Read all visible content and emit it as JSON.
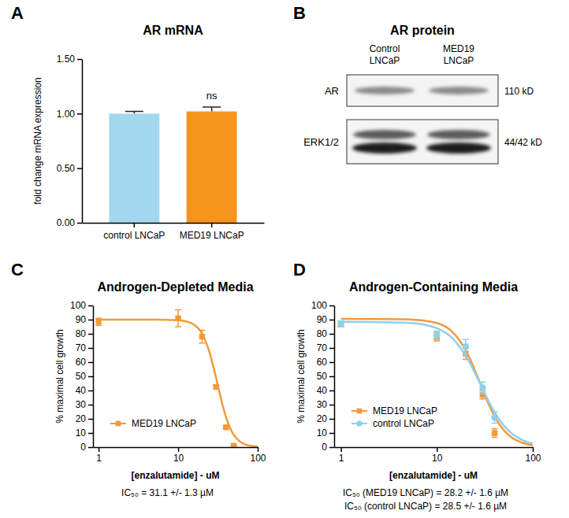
{
  "chart_data": [
    {
      "panel": "A",
      "type": "bar",
      "title": "AR mRNA",
      "y_label": "fold change mRNA expression",
      "categories": [
        "control LNCaP",
        "MED19 LNCaP"
      ],
      "values": [
        1.0,
        1.02
      ],
      "errors": [
        0.02,
        0.04
      ],
      "colors": [
        "#a3d7f0",
        "#f7941d"
      ],
      "ylim": [
        0,
        1.5
      ],
      "yticks": [
        {
          "value": 0,
          "label": "0.00"
        },
        {
          "value": 0.5,
          "label": "0.50"
        },
        {
          "value": 1,
          "label": "1.00"
        },
        {
          "value": 1.5,
          "label": "1.50"
        }
      ],
      "annotations": [
        {
          "text": "ns",
          "x": "MED19 LNCaP"
        }
      ]
    },
    {
      "panel": "C",
      "type": "line",
      "title": "Androgen-Depleted Media",
      "x_label": "[enzalutamide] - uM",
      "y_label": "% maximal cell growth",
      "log": "x",
      "xlim": [
        0.85,
        100
      ],
      "xticks": [
        1,
        10,
        100
      ],
      "ylim": [
        0,
        100
      ],
      "yticks": [
        0,
        10,
        20,
        30,
        40,
        50,
        60,
        70,
        80,
        90,
        100
      ],
      "legend": "lower left",
      "series": [
        {
          "name": "MED19 LNCaP",
          "color": "#f39a3b",
          "marker": "square",
          "line_style": "solid",
          "x": [
            1,
            10,
            20,
            30,
            40,
            50
          ],
          "values": [
            88.5,
            91,
            78,
            42.5,
            14,
            1
          ],
          "errors": [
            2.5,
            6,
            4.5,
            1.5,
            1,
            0.5
          ],
          "fit": {
            "x": [
              1,
              5,
              10,
              15,
              20,
              25,
              30,
              35,
              40,
              45,
              50,
              60,
              70,
              80,
              100
            ],
            "values": [
              90,
              90,
              89.6,
              87.2,
              80,
              66.2,
              48.8,
              32.8,
              21.1,
              13.5,
              8.7,
              3.9,
              1.9,
              1,
              0.4
            ]
          }
        }
      ],
      "annotations": [
        "IC₅₀ = 31.1 +/- 1.3 µM"
      ]
    },
    {
      "panel": "D",
      "type": "line",
      "title": "Androgen-Containing Media",
      "x_label": "[enzalutamide] - uM",
      "y_label": "% maximal cell growth",
      "log": "x",
      "xlim": [
        0.85,
        100
      ],
      "xticks": [
        1,
        10,
        100
      ],
      "ylim": [
        0,
        100
      ],
      "yticks": [
        0,
        10,
        20,
        30,
        40,
        50,
        60,
        70,
        80,
        90,
        100
      ],
      "legend": "lower left",
      "series": [
        {
          "name": "MED19 LNCaP",
          "color": "#f39a3b",
          "marker": "square",
          "line_style": "solid",
          "x": [
            1,
            10,
            20,
            30,
            40
          ],
          "values": [
            87,
            78,
            66,
            37,
            10
          ],
          "errors": [
            2,
            3,
            4,
            3,
            3
          ],
          "fit": {
            "x": [
              1,
              5,
              10,
              15,
              20,
              25,
              30,
              35,
              40,
              50,
              60,
              80,
              100
            ],
            "values": [
              90.5,
              90.2,
              87.6,
              80.4,
              68.5,
              54.1,
              40.7,
              29.8,
              21.7,
              11.9,
              6.9,
              2.8,
              1.4
            ]
          }
        },
        {
          "name": "control LNCaP",
          "color": "#8fd0ec",
          "marker": "circle",
          "line_style": "solid",
          "x": [
            1,
            10,
            20,
            30,
            40
          ],
          "values": [
            87,
            79,
            71,
            42,
            21
          ],
          "errors": [
            2,
            3,
            5,
            4,
            4
          ],
          "fit": {
            "x": [
              1,
              5,
              10,
              15,
              20,
              25,
              30,
              35,
              40,
              50,
              60,
              80,
              100
            ],
            "values": [
              88.5,
              87.8,
              84.0,
              75.9,
              64.6,
              52.3,
              41.1,
              31.8,
              24.7,
              15.2,
              9.8,
              4.7,
              2.6
            ]
          }
        }
      ],
      "annotations": [
        "IC₅₀ (MED19 LNCaP) = 28.2 +/- 1.6 µM",
        "IC₅₀ (control LNCaP) = 28.5 +/- 1.6 µM"
      ]
    }
  ],
  "blot": {
    "panel": "B",
    "title": "AR protein",
    "lanes": [
      [
        "Control",
        "LNCaP"
      ],
      [
        "MED19",
        "LNCaP"
      ]
    ],
    "bands": [
      {
        "label": "AR",
        "size": "110 kD"
      },
      {
        "label": "ERK1/2",
        "size": "44/42 kD"
      }
    ]
  }
}
